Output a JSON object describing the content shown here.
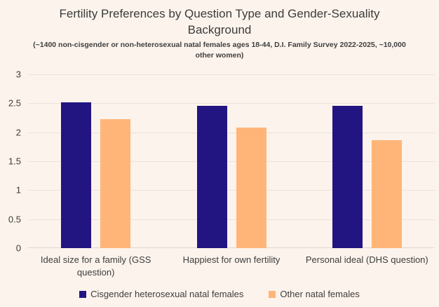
{
  "page": {
    "background_color": "#fcf3ec",
    "gridline_color": "#e8e2de",
    "text_color": "#3d3d3d"
  },
  "chart_data": {
    "type": "bar",
    "title": "Fertility Preferences by Question Type and Gender-Sexuality Background",
    "subtitle": "(~1400 non-cisgender or non-heterosexual natal females ages 18-44, D.I. Family Survey 2022-2025, ~10,000 other women)",
    "categories": [
      "Ideal size for a family (GSS question)",
      "Happiest for own fertility",
      "Personal ideal (DHS question)"
    ],
    "series": [
      {
        "name": "Cisgender heterosexual natal females",
        "color": "#221581",
        "values": [
          2.52,
          2.45,
          2.45
        ]
      },
      {
        "name": "Other natal females",
        "color": "#ffb578",
        "values": [
          2.22,
          2.08,
          1.86
        ]
      }
    ],
    "xlabel": "",
    "ylabel": "",
    "ylim": [
      0,
      3
    ],
    "yticks": [
      0,
      0.5,
      1,
      1.5,
      2,
      2.5,
      3
    ],
    "grid": true,
    "legend_position": "bottom"
  }
}
